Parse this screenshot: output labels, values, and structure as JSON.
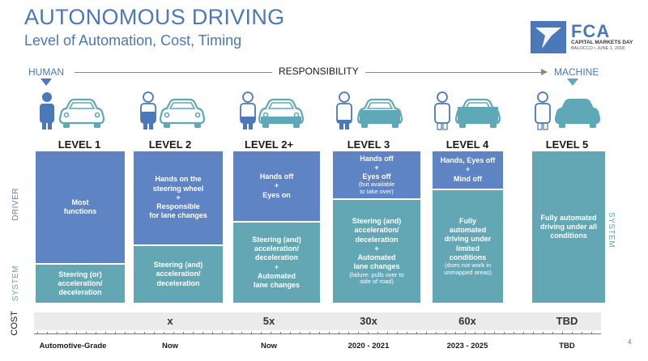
{
  "header": {
    "title": "AUTONOMOUS DRIVING",
    "subtitle": "Level of Automation, Cost, Timing"
  },
  "logo": {
    "word": "FCA",
    "tag1": "CAPITAL MARKETS DAY",
    "tag2": "BALOCCO • JUNE 1, 2018"
  },
  "responsibility": {
    "human": "HUMAN",
    "label": "RESPONSIBILITY",
    "machine": "MACHINE"
  },
  "side_labels": {
    "driver": "DRIVER",
    "system": "SYSTEM",
    "cost": "COST"
  },
  "levels": [
    {
      "title": "LEVEL 1",
      "driver_lines": [
        "Most",
        "functions"
      ],
      "system_lines": [
        "Steering (or)",
        "acceleration/",
        "deceleration"
      ],
      "cost": "",
      "timing": "Automotive-Grade"
    },
    {
      "title": "LEVEL 2",
      "driver_lines": [
        "Hands on the",
        "steering wheel",
        "+",
        "Responsible",
        "for lane changes"
      ],
      "system_lines": [
        "Steering (and)",
        "acceleration/",
        "deceleration"
      ],
      "cost": "x",
      "timing": "Now"
    },
    {
      "title": "LEVEL 2+",
      "driver_lines": [
        "Hands off",
        "+",
        "Eyes on"
      ],
      "system_lines": [
        "Steering (and)",
        "acceleration/",
        "deceleration",
        "+",
        "Automated",
        "lane changes"
      ],
      "cost": "5x",
      "timing": "Now"
    },
    {
      "title": "LEVEL 3",
      "driver_lines": [
        "Hands off",
        "+",
        "Eyes off"
      ],
      "driver_note": [
        "(but available",
        "to take over)"
      ],
      "system_lines": [
        "Steering (and)",
        "acceleration/",
        "deceleration",
        "+",
        "Automated",
        "lane changes"
      ],
      "system_note": [
        "(failure: pulls over to",
        "side of road)"
      ],
      "cost": "30x",
      "timing": "2020 - 2021"
    },
    {
      "title": "LEVEL 4",
      "driver_lines": [
        "Hands, Eyes off",
        "+",
        "Mind off"
      ],
      "system_lines": [
        "Fully",
        "automated",
        "driving under",
        "limited",
        "conditions"
      ],
      "system_note": [
        "(does not work in",
        "unmapped areas)"
      ],
      "cost": "60x",
      "timing": "2023 - 2025"
    },
    {
      "title": "LEVEL 5",
      "driver_lines": [],
      "system_lines": [
        "Fully automated",
        "driving under all",
        "conditions"
      ],
      "cost": "TBD",
      "timing": "TBD"
    }
  ],
  "page_number": "4",
  "colors": {
    "driver": "#5f84c4",
    "system": "#63a7b5",
    "accent": "#4a78b8"
  }
}
